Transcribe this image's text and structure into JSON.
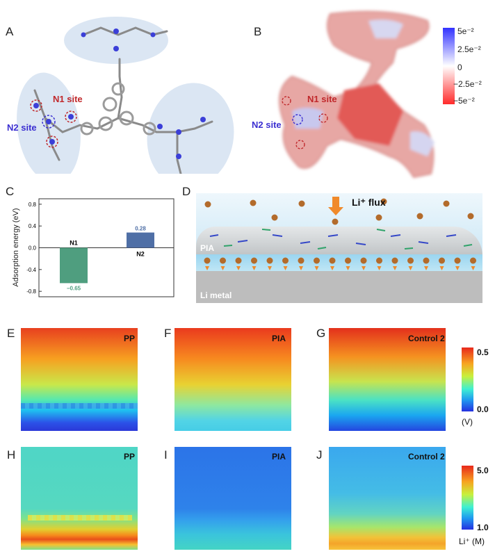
{
  "panels": {
    "a": "A",
    "b": "B",
    "c": "C",
    "d": "D",
    "e": "E",
    "f": "F",
    "g": "G",
    "h": "H",
    "i": "I",
    "j": "J"
  },
  "molecule": {
    "n1_label": "N1 site",
    "n2_label": "N2 site",
    "n1_color": "#c0282b",
    "n2_color": "#3b2fd1"
  },
  "esp_colorbar": {
    "ticks": [
      "5e⁻²",
      "2.5e⁻²",
      "0",
      "−2.5e⁻²",
      "−5e⁻²"
    ]
  },
  "chart_data": {
    "type": "bar",
    "categories": [
      "N1",
      "N2"
    ],
    "values": [
      -0.65,
      0.28
    ],
    "value_labels": [
      "−0.65",
      "0.28"
    ],
    "colors": [
      "#4f9e7f",
      "#4f6fa6"
    ],
    "ylabel": "Adsorption energy (eV)",
    "ylim": [
      -0.9,
      0.9
    ],
    "yticks": [
      0.8,
      0.4,
      0.0,
      -0.4,
      -0.8
    ],
    "ytick_labels": [
      "0.8",
      "0.4",
      "0.0",
      "-0.4",
      "-0.8"
    ]
  },
  "schematic": {
    "flux_label": "Li⁺ flux",
    "layer_label": "PIA",
    "metal_label": "Li metal"
  },
  "potential_maps": {
    "titles": [
      "PP",
      "PIA",
      "Control 2"
    ],
    "colorbar_top": "0.5",
    "colorbar_bottom": "0.0",
    "unit": "(V)"
  },
  "concentration_maps": {
    "titles": [
      "PP",
      "PIA",
      "Control 2"
    ],
    "colorbar_top": "5.0",
    "colorbar_bottom": "1.0",
    "unit": "Li⁺ (M)"
  }
}
